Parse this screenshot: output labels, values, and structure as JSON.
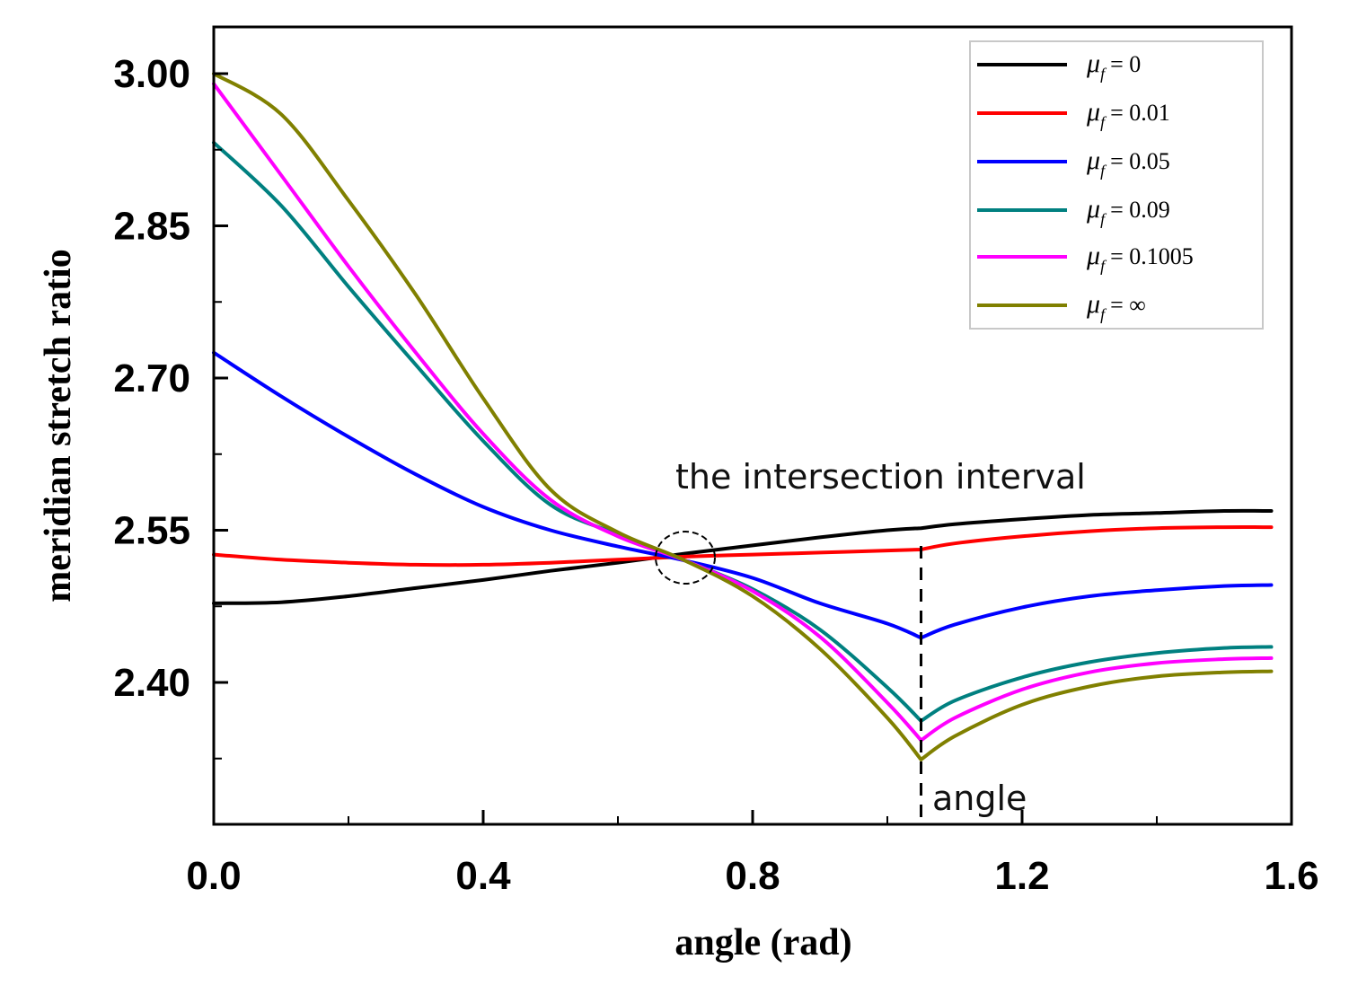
{
  "chart_data": {
    "type": "line",
    "xlabel": "angle (rad)",
    "ylabel": "meridian stretch ratio",
    "xlim": [
      0.0,
      1.6
    ],
    "ylim": [
      2.26,
      3.05
    ],
    "x_ticks": [
      0.0,
      0.4,
      0.8,
      1.2,
      1.6
    ],
    "x_tick_labels": [
      "0.0",
      "0.4",
      "0.8",
      "1.2",
      "1.6"
    ],
    "x_minor_ticks": [
      0.2,
      0.6,
      1.0,
      1.4
    ],
    "y_ticks": [
      2.4,
      2.55,
      2.7,
      2.85,
      3.0
    ],
    "y_tick_labels": [
      "2.40",
      "2.55",
      "2.70",
      "2.85",
      "3.00"
    ],
    "y_minor_ticks": [
      2.325,
      2.475,
      2.625,
      2.775,
      2.925
    ],
    "legend_position": "top-right",
    "legend_symbol": "μ",
    "legend_subscript": "f",
    "series": [
      {
        "name": "μf = 0",
        "legend_value": "= 0",
        "color": "#000000",
        "x": [
          0.0,
          0.1,
          0.2,
          0.3,
          0.4,
          0.5,
          0.6,
          0.7,
          0.8,
          0.9,
          1.0,
          1.05,
          1.1,
          1.2,
          1.3,
          1.4,
          1.5,
          1.57
        ],
        "y": [
          2.478,
          2.479,
          2.485,
          2.493,
          2.501,
          2.51,
          2.518,
          2.527,
          2.535,
          2.543,
          2.55,
          2.552,
          2.556,
          2.561,
          2.565,
          2.567,
          2.569,
          2.569
        ]
      },
      {
        "name": "μf = 0.01",
        "legend_value": "= 0.01",
        "color": "#ff0000",
        "x": [
          0.0,
          0.1,
          0.2,
          0.3,
          0.4,
          0.5,
          0.6,
          0.7,
          0.8,
          0.9,
          1.0,
          1.05,
          1.1,
          1.2,
          1.3,
          1.4,
          1.5,
          1.57
        ],
        "y": [
          2.526,
          2.521,
          2.518,
          2.516,
          2.516,
          2.518,
          2.521,
          2.524,
          2.526,
          2.528,
          2.53,
          2.531,
          2.537,
          2.544,
          2.549,
          2.552,
          2.553,
          2.553
        ]
      },
      {
        "name": "μf = 0.05",
        "legend_value": "= 0.05",
        "color": "#0000ff",
        "x": [
          0.0,
          0.1,
          0.2,
          0.3,
          0.4,
          0.5,
          0.6,
          0.7,
          0.8,
          0.9,
          1.0,
          1.05,
          1.1,
          1.2,
          1.3,
          1.4,
          1.5,
          1.57
        ],
        "y": [
          2.725,
          2.682,
          2.642,
          2.605,
          2.573,
          2.55,
          2.534,
          2.52,
          2.503,
          2.478,
          2.458,
          2.444,
          2.457,
          2.474,
          2.485,
          2.491,
          2.495,
          2.496
        ]
      },
      {
        "name": "μf = 0.09",
        "legend_value": "= 0.09",
        "color": "#008080",
        "x": [
          0.0,
          0.1,
          0.2,
          0.3,
          0.4,
          0.5,
          0.6,
          0.7,
          0.8,
          0.9,
          1.0,
          1.05,
          1.1,
          1.2,
          1.3,
          1.4,
          1.5,
          1.57
        ],
        "y": [
          2.932,
          2.87,
          2.79,
          2.713,
          2.638,
          2.575,
          2.546,
          2.52,
          2.492,
          2.452,
          2.395,
          2.362,
          2.382,
          2.405,
          2.42,
          2.429,
          2.434,
          2.435
        ]
      },
      {
        "name": "μf = 0.1005",
        "legend_value": "= 0.1005",
        "color": "#ff00ff",
        "x": [
          0.0,
          0.1,
          0.2,
          0.3,
          0.4,
          0.5,
          0.6,
          0.7,
          0.8,
          0.9,
          1.0,
          1.05,
          1.1,
          1.2,
          1.3,
          1.4,
          1.5,
          1.57
        ],
        "y": [
          2.99,
          2.9,
          2.81,
          2.725,
          2.645,
          2.58,
          2.544,
          2.52,
          2.49,
          2.445,
          2.38,
          2.343,
          2.365,
          2.393,
          2.41,
          2.419,
          2.423,
          2.424
        ]
      },
      {
        "name": "μf = ∞",
        "legend_value": "= ∞",
        "color": "#808000",
        "x": [
          0.0,
          0.1,
          0.2,
          0.3,
          0.4,
          0.5,
          0.6,
          0.7,
          0.8,
          0.9,
          1.0,
          1.05,
          1.1,
          1.2,
          1.3,
          1.4,
          1.5,
          1.57
        ],
        "y": [
          3.0,
          2.96,
          2.875,
          2.782,
          2.68,
          2.59,
          2.548,
          2.52,
          2.485,
          2.433,
          2.365,
          2.324,
          2.347,
          2.378,
          2.396,
          2.406,
          2.41,
          2.411
        ]
      }
    ],
    "annotations": {
      "intersection_label": "the intersection interval",
      "intersection_circle_center": {
        "x": 0.7,
        "y": 2.523
      },
      "angle_label": "angle",
      "dashed_line_x": 1.05
    }
  }
}
